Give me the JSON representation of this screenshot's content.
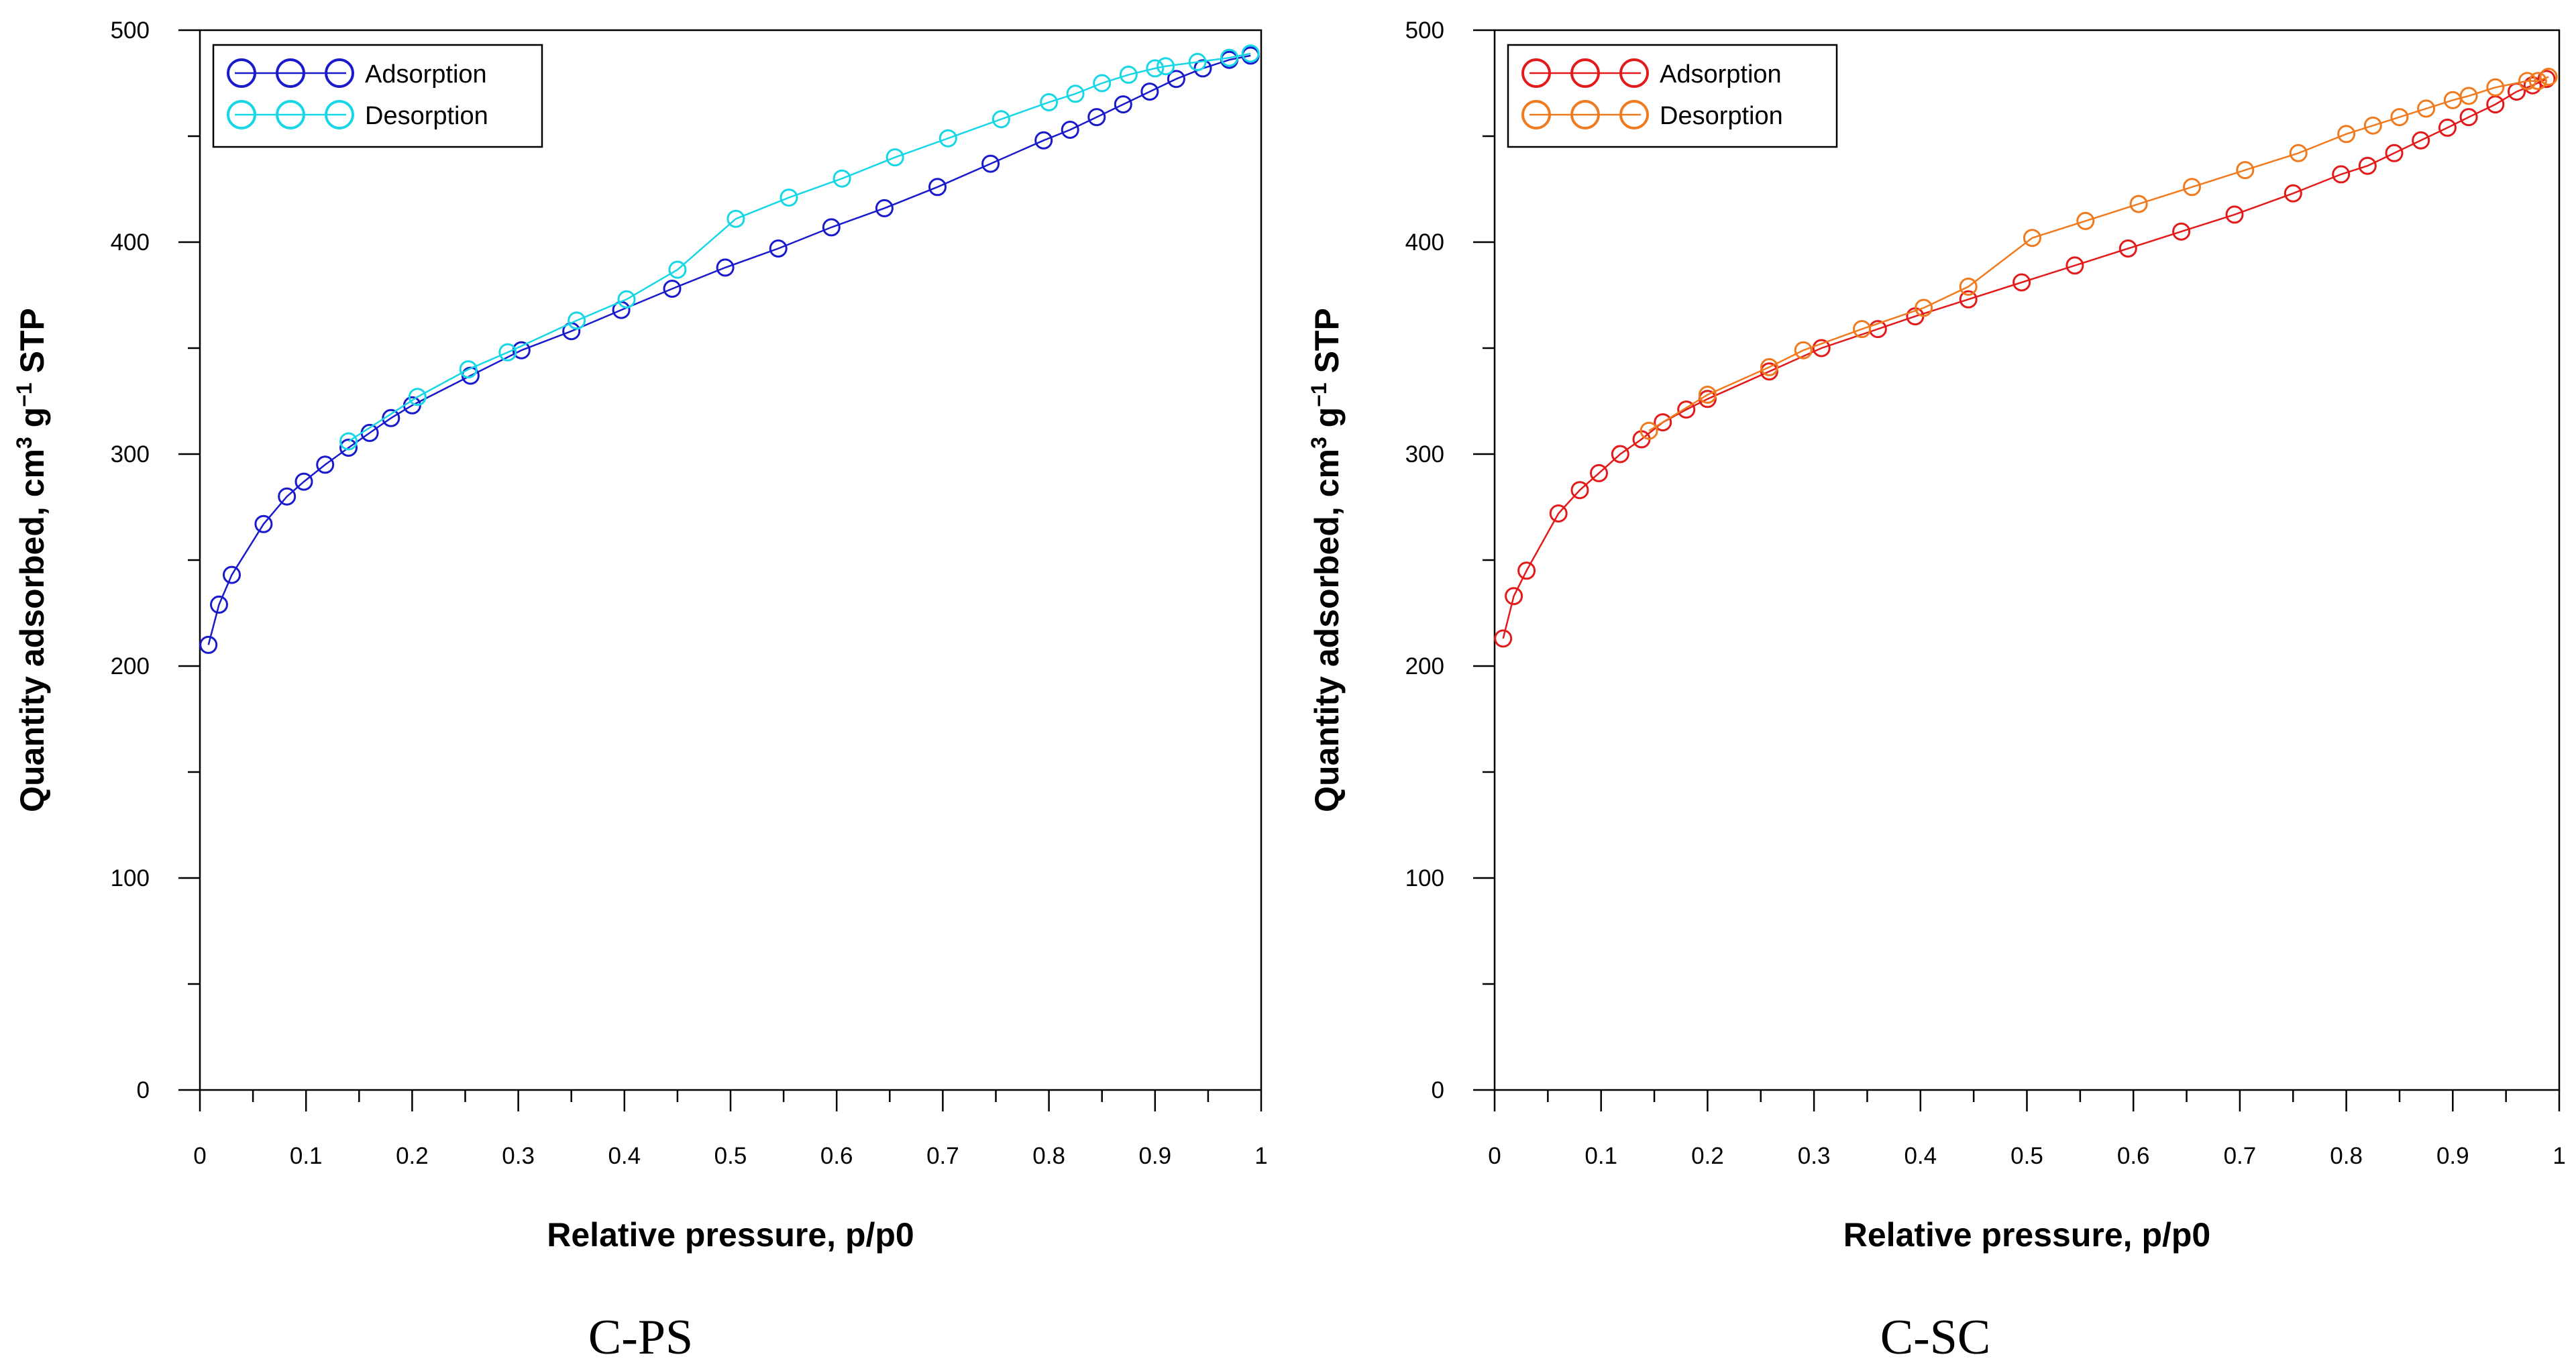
{
  "chart_data": [
    {
      "type": "line",
      "caption": "C-PS",
      "xlabel": "Relative pressure, p/p0",
      "ylabel": "Quantity adsorbed, cm",
      "ylabel_sup1": "3",
      "ylabel_mid": " g",
      "ylabel_sup2": "−1",
      "ylabel_end": " STP",
      "xlim": [
        0,
        1
      ],
      "ylim": [
        0,
        500
      ],
      "x_ticks": [
        "0",
        "0.1",
        "0.2",
        "0.3",
        "0.4",
        "0.5",
        "0.6",
        "0.7",
        "0.8",
        "0.9",
        "1"
      ],
      "y_ticks": [
        "0",
        "100",
        "200",
        "300",
        "400",
        "500"
      ],
      "legend_position": "top-left",
      "series": [
        {
          "name": "Adsorption",
          "color": "#1a1acd",
          "points": [
            [
              0.008,
              210
            ],
            [
              0.018,
              229
            ],
            [
              0.03,
              243
            ],
            [
              0.06,
              267
            ],
            [
              0.082,
              280
            ],
            [
              0.098,
              287
            ],
            [
              0.118,
              295
            ],
            [
              0.14,
              303
            ],
            [
              0.16,
              310
            ],
            [
              0.18,
              317
            ],
            [
              0.2,
              323
            ],
            [
              0.255,
              337
            ],
            [
              0.303,
              349
            ],
            [
              0.35,
              358
            ],
            [
              0.397,
              368
            ],
            [
              0.445,
              378
            ],
            [
              0.495,
              388
            ],
            [
              0.545,
              397
            ],
            [
              0.595,
              407
            ],
            [
              0.645,
              416
            ],
            [
              0.695,
              426
            ],
            [
              0.745,
              437
            ],
            [
              0.795,
              448
            ],
            [
              0.82,
              453
            ],
            [
              0.845,
              459
            ],
            [
              0.87,
              465
            ],
            [
              0.895,
              471
            ],
            [
              0.92,
              477
            ],
            [
              0.945,
              482
            ],
            [
              0.97,
              486
            ],
            [
              0.99,
              488
            ]
          ]
        },
        {
          "name": "Desorption",
          "color": "#17d7e6",
          "points": [
            [
              0.99,
              489
            ],
            [
              0.97,
              487
            ],
            [
              0.94,
              485
            ],
            [
              0.91,
              483
            ],
            [
              0.9,
              482
            ],
            [
              0.875,
              479
            ],
            [
              0.85,
              475
            ],
            [
              0.825,
              470
            ],
            [
              0.8,
              466
            ],
            [
              0.755,
              458
            ],
            [
              0.705,
              449
            ],
            [
              0.655,
              440
            ],
            [
              0.605,
              430
            ],
            [
              0.555,
              421
            ],
            [
              0.505,
              411
            ],
            [
              0.45,
              387
            ],
            [
              0.402,
              373
            ],
            [
              0.355,
              363
            ],
            [
              0.29,
              348
            ],
            [
              0.253,
              340
            ],
            [
              0.205,
              327
            ],
            [
              0.14,
              306
            ]
          ]
        }
      ]
    },
    {
      "type": "line",
      "caption": "C-SC",
      "xlabel": "Relative pressure, p/p0",
      "ylabel": "Quantity adsorbed, cm",
      "ylabel_sup1": "3",
      "ylabel_mid": " g",
      "ylabel_sup2": "−1",
      "ylabel_end": " STP",
      "xlim": [
        0,
        1
      ],
      "ylim": [
        0,
        500
      ],
      "x_ticks": [
        "0",
        "0.1",
        "0.2",
        "0.3",
        "0.4",
        "0.5",
        "0.6",
        "0.7",
        "0.8",
        "0.9",
        "1"
      ],
      "y_ticks": [
        "0",
        "100",
        "200",
        "300",
        "400",
        "500"
      ],
      "legend_position": "top-left",
      "series": [
        {
          "name": "Adsorption",
          "color": "#e31a1a",
          "points": [
            [
              0.008,
              213
            ],
            [
              0.018,
              233
            ],
            [
              0.03,
              245
            ],
            [
              0.06,
              272
            ],
            [
              0.08,
              283
            ],
            [
              0.098,
              291
            ],
            [
              0.118,
              300
            ],
            [
              0.138,
              307
            ],
            [
              0.158,
              315
            ],
            [
              0.18,
              321
            ],
            [
              0.2,
              326
            ],
            [
              0.258,
              339
            ],
            [
              0.307,
              350
            ],
            [
              0.36,
              359
            ],
            [
              0.395,
              365
            ],
            [
              0.445,
              373
            ],
            [
              0.495,
              381
            ],
            [
              0.545,
              389
            ],
            [
              0.595,
              397
            ],
            [
              0.645,
              405
            ],
            [
              0.695,
              413
            ],
            [
              0.75,
              423
            ],
            [
              0.795,
              432
            ],
            [
              0.82,
              436
            ],
            [
              0.845,
              442
            ],
            [
              0.87,
              448
            ],
            [
              0.895,
              454
            ],
            [
              0.915,
              459
            ],
            [
              0.94,
              465
            ],
            [
              0.96,
              471
            ],
            [
              0.975,
              474
            ],
            [
              0.988,
              477
            ]
          ]
        },
        {
          "name": "Desorption",
          "color": "#f07a1e",
          "points": [
            [
              0.99,
              478
            ],
            [
              0.98,
              476
            ],
            [
              0.97,
              476
            ],
            [
              0.94,
              473
            ],
            [
              0.915,
              469
            ],
            [
              0.9,
              467
            ],
            [
              0.875,
              463
            ],
            [
              0.85,
              459
            ],
            [
              0.825,
              455
            ],
            [
              0.8,
              451
            ],
            [
              0.755,
              442
            ],
            [
              0.705,
              434
            ],
            [
              0.655,
              426
            ],
            [
              0.605,
              418
            ],
            [
              0.555,
              410
            ],
            [
              0.505,
              402
            ],
            [
              0.445,
              379
            ],
            [
              0.403,
              369
            ],
            [
              0.345,
              359
            ],
            [
              0.29,
              349
            ],
            [
              0.258,
              341
            ],
            [
              0.2,
              328
            ],
            [
              0.145,
              311
            ]
          ]
        }
      ]
    }
  ]
}
